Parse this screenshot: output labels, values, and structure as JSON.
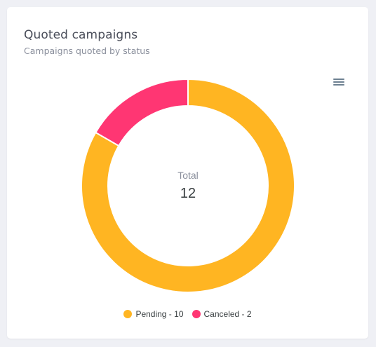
{
  "card": {
    "title": "Quoted campaigns",
    "subtitle": "Campaigns quoted by status",
    "menu_icon": "hamburger-menu-icon"
  },
  "chart_data": {
    "type": "pie",
    "donut": true,
    "total_label": "Total",
    "total_value": "12",
    "series": [
      {
        "name": "Pending",
        "value": 10,
        "color": "#ffb522",
        "legend_label": "Pending - 10"
      },
      {
        "name": "Canceled",
        "value": 2,
        "color": "#ff3673",
        "legend_label": "Canceled - 2"
      }
    ],
    "legend_position": "bottom"
  }
}
